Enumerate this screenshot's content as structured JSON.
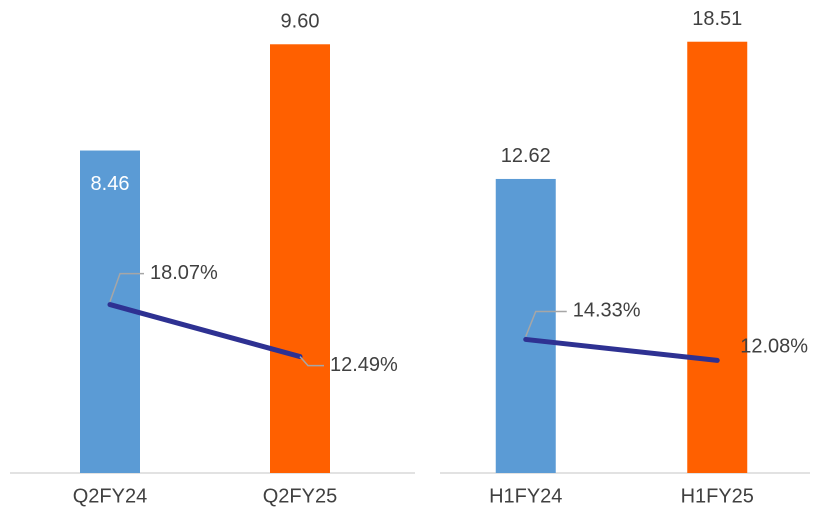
{
  "chart_data": [
    {
      "type": "bar",
      "categories": [
        "Q2FY24",
        "Q2FY25"
      ],
      "ylim": [
        5,
        10
      ],
      "y2lim": [
        0,
        50
      ],
      "series": [
        {
          "color": "#5b9bd5",
          "colors": [
            "#5b9bd5",
            "#ff6000"
          ],
          "values": [
            8.46,
            9.6
          ],
          "value_labels": [
            "8.46",
            "9.60"
          ]
        },
        {
          "type": "line",
          "axis": "y2",
          "color": "#2e3192",
          "values": [
            18.07,
            12.49
          ],
          "value_labels": [
            "18.07%",
            "12.49%"
          ]
        }
      ]
    },
    {
      "type": "bar",
      "categories": [
        "H1FY24",
        "H1FY25"
      ],
      "ylim": [
        0,
        20
      ],
      "y2lim": [
        0,
        50
      ],
      "series": [
        {
          "color": "#5b9bd5",
          "colors": [
            "#5b9bd5",
            "#ff6000"
          ],
          "values": [
            12.62,
            18.51
          ],
          "value_labels": [
            "12.62",
            "18.51"
          ]
        },
        {
          "type": "line",
          "axis": "y2",
          "color": "#2e3192",
          "values": [
            14.33,
            12.08
          ],
          "value_labels": [
            "14.33%",
            "12.08%"
          ]
        }
      ]
    }
  ]
}
